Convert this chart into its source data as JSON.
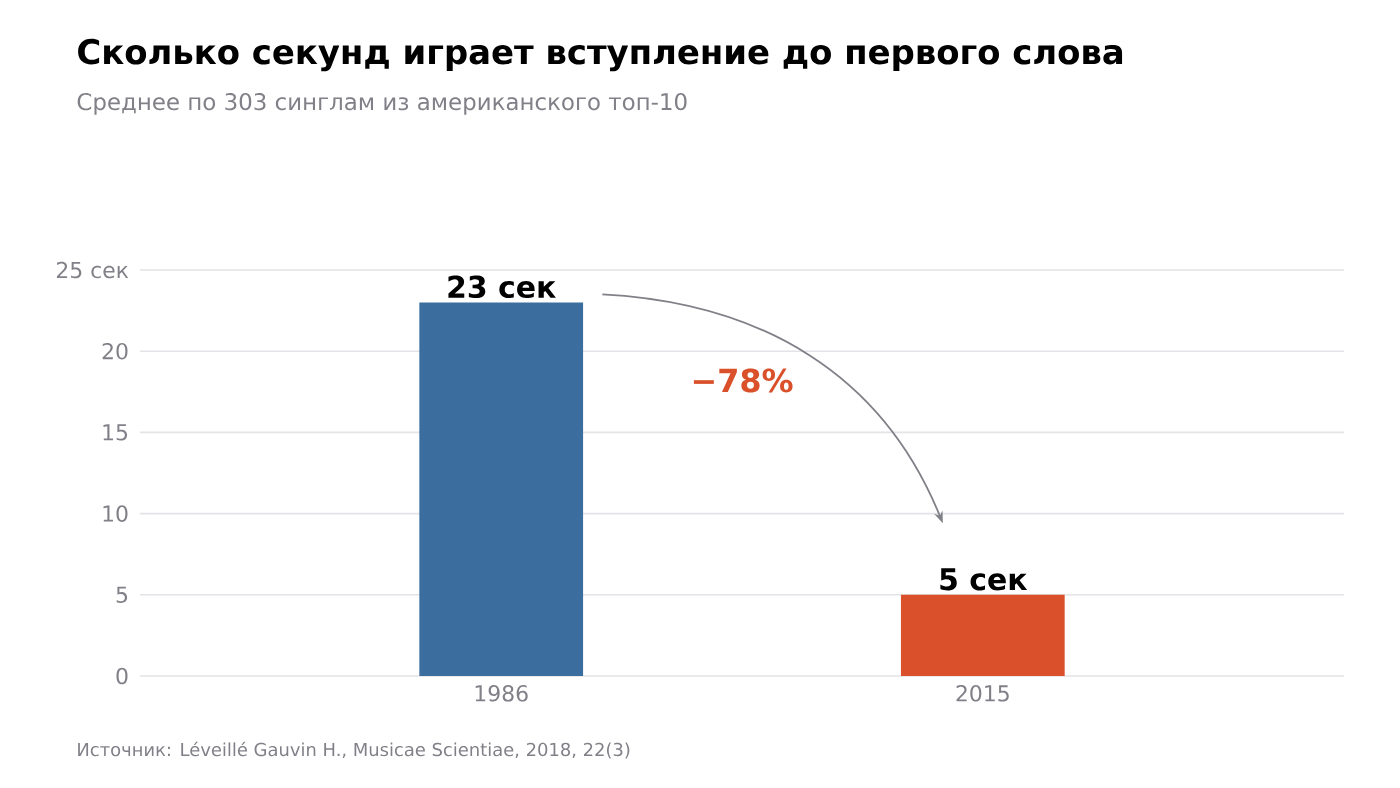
{
  "chart_data": {
    "type": "bar",
    "title": "Сколько секунд играет вступление до первого слова",
    "subtitle": "Среднее по 303 синглам из американского топ-10",
    "categories": [
      "1986",
      "2015"
    ],
    "values": [
      23,
      5
    ],
    "colors": [
      "#3b6e9e",
      "#d9502b"
    ],
    "value_labels": [
      "23 сек",
      "5 сек"
    ],
    "ylim": [
      0,
      25
    ],
    "yticks": [
      0,
      5,
      10,
      15,
      20,
      {
        "value": 25,
        "label": "25 сек"
      }
    ],
    "grid": "y",
    "annotations": [
      "−78%",
      "Источник: Léveillé Gauvin H., Musicae Scientiae, 2018, 22(3)"
    ]
  }
}
